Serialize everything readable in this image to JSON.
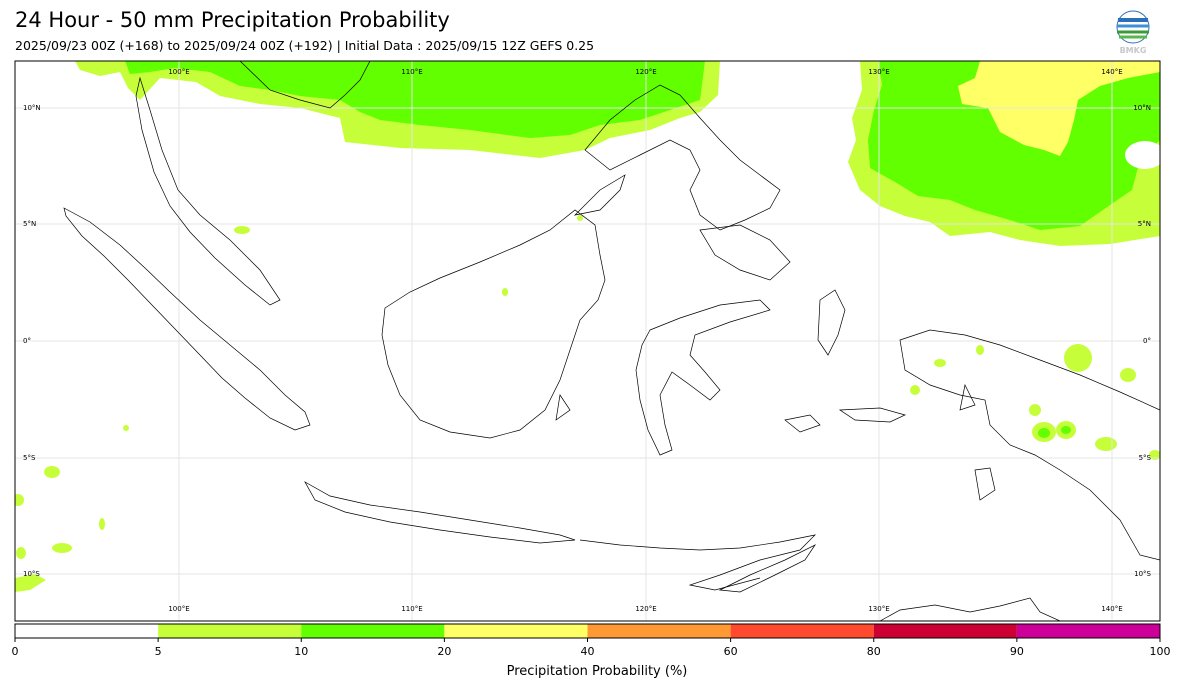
{
  "header": {
    "title": "24 Hour - 50 mm Precipitation Probability",
    "subtitle": "2025/09/23 00Z (+168) to 2025/09/24 00Z (+192) | Initial Data : 2025/09/15 12Z GEFS 0.25"
  },
  "logo": {
    "icon": "bmkg-globe-icon",
    "text": "BMKG"
  },
  "map": {
    "lon_range": [
      93,
      142
    ],
    "lat_range": [
      -12,
      12
    ],
    "lon_labels": [
      "100°E",
      "110°E",
      "120°E",
      "130°E",
      "140°E"
    ],
    "lat_labels": [
      "10°N",
      "5°N",
      "0°",
      "5°S",
      "10°S"
    ],
    "grid": true,
    "coastline_color": "#000000",
    "grid_color": "#e6e6e6"
  },
  "legend": {
    "label": "Precipitation Probability (%)",
    "ticks": [
      "0",
      "5",
      "10",
      "20",
      "40",
      "60",
      "80",
      "90",
      "100"
    ],
    "bins": [
      {
        "from": 0,
        "to": 5,
        "color": "#ffffff"
      },
      {
        "from": 5,
        "to": 10,
        "color": "#c6ff3a"
      },
      {
        "from": 10,
        "to": 20,
        "color": "#62ff00"
      },
      {
        "from": 20,
        "to": 40,
        "color": "#ffff66"
      },
      {
        "from": 40,
        "to": 60,
        "color": "#ff9933"
      },
      {
        "from": 60,
        "to": 80,
        "color": "#ff4a2e"
      },
      {
        "from": 80,
        "to": 90,
        "color": "#cc0033"
      },
      {
        "from": 90,
        "to": 100,
        "color": "#cc0099"
      }
    ]
  }
}
